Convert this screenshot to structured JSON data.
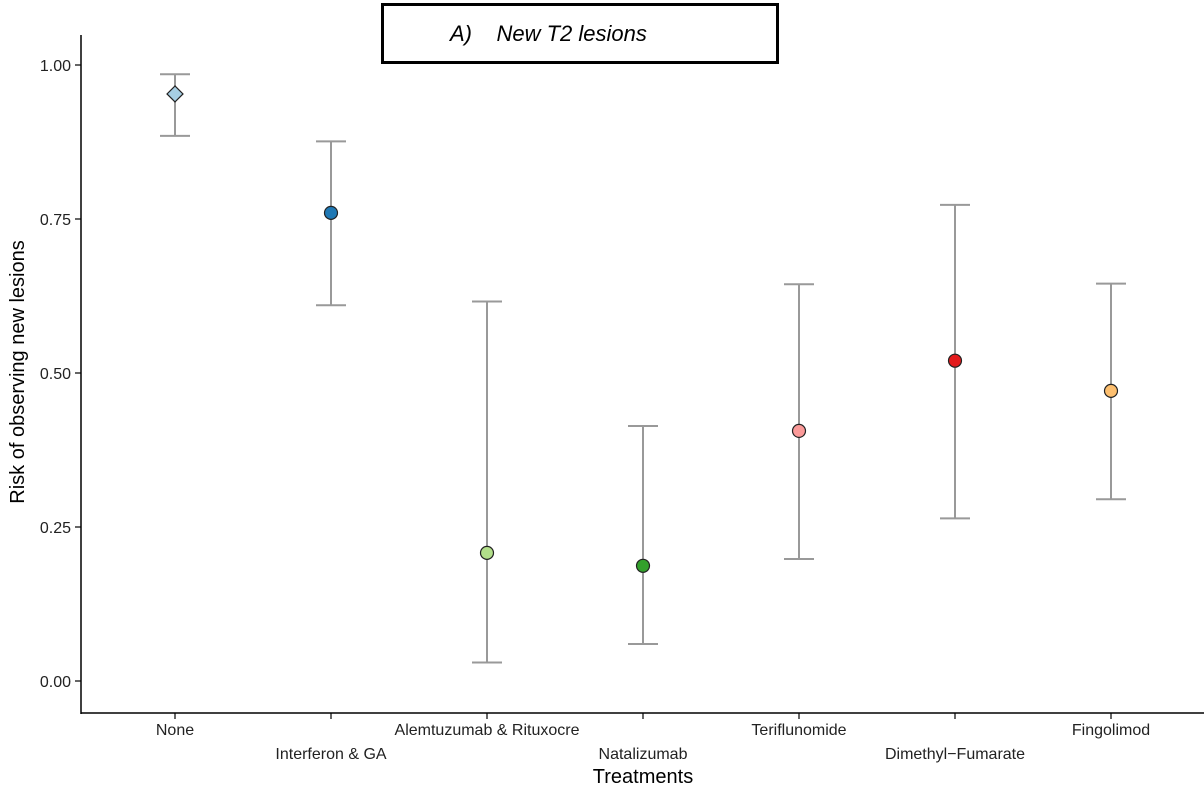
{
  "chart_data": {
    "type": "scatter",
    "title": "A)    New T2 lesions",
    "xlabel": "Treatments",
    "ylabel": "Risk of observing new lesions",
    "ylim": [
      -0.05,
      1.05
    ],
    "yticks": [
      "0.00",
      "0.25",
      "0.50",
      "0.75",
      "1.00"
    ],
    "categories": [
      "None",
      "Interferon & GA",
      "Alemtuzumab & Rituxocre",
      "Natalizumab",
      "Teriflunomide",
      "Dimethyl−Fumarate",
      "Fingolimod"
    ],
    "estimate": [
      0.953,
      0.76,
      0.208,
      0.187,
      0.406,
      0.52,
      0.471
    ],
    "lower": [
      0.885,
      0.61,
      0.03,
      0.06,
      0.198,
      0.264,
      0.295
    ],
    "upper": [
      0.985,
      0.876,
      0.616,
      0.414,
      0.644,
      0.773,
      0.645
    ],
    "colors": [
      "#a6cee3",
      "#1f78b4",
      "#b2df8a",
      "#33a02c",
      "#fb9a99",
      "#e31a1c",
      "#fdbf6f"
    ],
    "markers": [
      "diamond",
      "circle",
      "circle",
      "circle",
      "circle",
      "circle",
      "circle"
    ],
    "errorbar_color": "#999999",
    "grid": false,
    "legend": "none"
  }
}
